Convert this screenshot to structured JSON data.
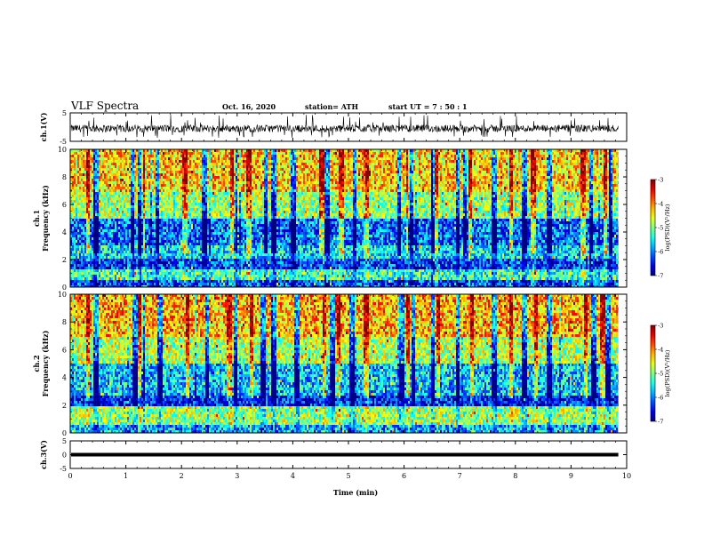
{
  "header": {
    "title": "VLF Spectra",
    "date": "Oct. 16, 2020",
    "station": "station= ATH",
    "start": "start  UT =   7 : 50 : 1"
  },
  "xaxis": {
    "label": "Time  (min)"
  },
  "colors": {
    "background": "#ffffff",
    "axes": "#000000",
    "trace": "#000000"
  },
  "chart_data": [
    {
      "type": "line",
      "name": "ch1-waveform",
      "ylabel": "ch.1(V)",
      "ylim": [
        -5,
        5
      ],
      "xlim": [
        0,
        10
      ],
      "ytick_labels": [
        "5",
        "-5"
      ],
      "xtick_labels": [
        "0",
        "1",
        "2",
        "3",
        "4",
        "5",
        "6",
        "7",
        "8",
        "9",
        "10"
      ],
      "note_values": "noisy signal around -0.5 V, typical range -2.5 to 1.5 V, spikes up to about +4.5 V",
      "x_end": 9.85
    },
    {
      "type": "heatmap",
      "name": "ch1-spectrogram",
      "ylabel": "ch.1\nFrequency  (kHz)",
      "xlim": [
        0,
        10
      ],
      "ylim": [
        0,
        10
      ],
      "ytick_labels": [
        "0",
        "2",
        "4",
        "6",
        "8",
        "10"
      ],
      "xtick_labels": [
        "0",
        "1",
        "2",
        "3",
        "4",
        "5",
        "6",
        "7",
        "8",
        "9",
        "10"
      ],
      "x_end": 9.85,
      "colorbar": {
        "label": "log(PSD)(V²/Hz)",
        "range": [
          -7,
          -3
        ],
        "tick_labels": [
          "-3",
          "-4",
          "-5",
          "-6",
          "-7"
        ]
      },
      "bands": [
        {
          "f_low": 0.0,
          "f_high": 0.6,
          "log_psd": -6.2
        },
        {
          "f_low": 0.6,
          "f_high": 1.3,
          "log_psd": -5.3
        },
        {
          "f_low": 1.3,
          "f_high": 2.0,
          "log_psd": -6.3
        },
        {
          "f_low": 2.0,
          "f_high": 3.0,
          "log_psd": -5.6
        },
        {
          "f_low": 3.0,
          "f_high": 5.0,
          "log_psd": -6.1
        },
        {
          "f_low": 5.0,
          "f_high": 7.0,
          "log_psd": -4.9
        },
        {
          "f_low": 7.0,
          "f_high": 10.0,
          "log_psd": -4.3
        }
      ],
      "dark_columns_min": [
        0.45,
        1.1,
        1.25,
        1.55,
        2.4,
        2.95,
        3.5,
        3.65,
        4.0,
        4.6,
        5.1,
        5.9,
        6.1,
        6.5,
        6.95,
        7.1,
        7.6,
        8.15,
        8.6,
        9.35,
        9.7
      ],
      "bright_columns_min": [
        0.3,
        1.3,
        2.05,
        2.9,
        3.2,
        4.5,
        4.85,
        5.3,
        6.05,
        6.55,
        7.15,
        7.9,
        8.3,
        9.2,
        9.6
      ]
    },
    {
      "type": "heatmap",
      "name": "ch2-spectrogram",
      "ylabel": "ch.2\nFrequency  (kHz)",
      "xlim": [
        0,
        10
      ],
      "ylim": [
        0,
        10
      ],
      "ytick_labels": [
        "0",
        "2",
        "4",
        "6",
        "8",
        "10"
      ],
      "xtick_labels": [
        "0",
        "1",
        "2",
        "3",
        "4",
        "5",
        "6",
        "7",
        "8",
        "9",
        "10"
      ],
      "x_end": 9.85,
      "colorbar": {
        "label": "log(PSD)(V²/Hz)",
        "range": [
          -7,
          -3
        ],
        "tick_labels": [
          "-3",
          "-4",
          "-5",
          "-6",
          "-7"
        ]
      },
      "bands": [
        {
          "f_low": 0.0,
          "f_high": 0.5,
          "log_psd": -5.8
        },
        {
          "f_low": 0.5,
          "f_high": 1.9,
          "log_psd": -4.9
        },
        {
          "f_low": 1.9,
          "f_high": 2.6,
          "log_psd": -6.4
        },
        {
          "f_low": 2.6,
          "f_high": 5.0,
          "log_psd": -5.7
        },
        {
          "f_low": 5.0,
          "f_high": 7.0,
          "log_psd": -4.8
        },
        {
          "f_low": 7.0,
          "f_high": 10.0,
          "log_psd": -4.2
        }
      ],
      "dark_columns_min": [
        0.45,
        1.15,
        1.3,
        1.6,
        2.45,
        2.95,
        3.45,
        3.65,
        4.05,
        4.7,
        5.05,
        5.95,
        6.15,
        6.5,
        6.95,
        7.6,
        8.15,
        8.6,
        9.4,
        9.65
      ],
      "bright_columns_min": [
        0.3,
        1.25,
        2.1,
        2.85,
        3.25,
        4.55,
        4.8,
        5.3,
        6.05,
        6.6,
        7.2,
        7.9,
        8.35,
        9.25,
        9.55
      ]
    },
    {
      "type": "line",
      "name": "ch3-waveform",
      "ylabel": "ch.3(V)",
      "ylim": [
        -5,
        5
      ],
      "xlim": [
        0,
        10
      ],
      "ytick_labels": [
        "5",
        "0",
        "-5"
      ],
      "xtick_labels": [
        "0",
        "1",
        "2",
        "3",
        "4",
        "5",
        "6",
        "7",
        "8",
        "9",
        "10"
      ],
      "note_values": "nearly constant at about 0 V, thick trace",
      "x_end": 9.85
    }
  ]
}
